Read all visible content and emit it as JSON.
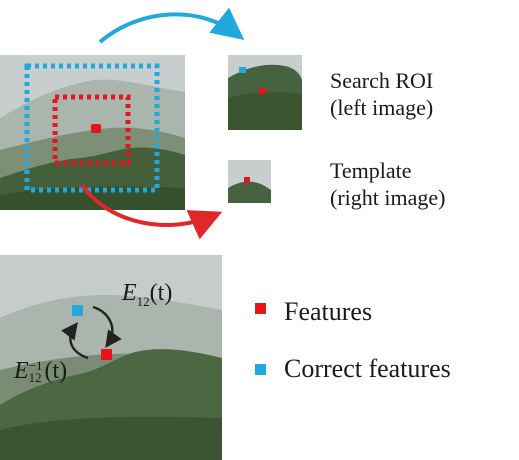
{
  "colors": {
    "feature": "#e8141c",
    "correct_feature": "#21a8df",
    "arrow_blue": "#21a8df",
    "arrow_red": "#e0282a",
    "arrow_black": "#222222",
    "sky": "#c9cfcf",
    "hill_far": "#a9b6ad",
    "hill_mid": "#738a6f",
    "forest": "#3f5a33"
  },
  "labels": {
    "search_roi_line1": "Search ROI",
    "search_roi_line2": "(left image)",
    "template_line1": "Template",
    "template_line2": "(right image)"
  },
  "legend": {
    "features": "Features",
    "correct_features": "Correct features"
  },
  "equations": {
    "forward": {
      "symbol": "E",
      "sub": "12",
      "arg": "(t)"
    },
    "inverse": {
      "symbol": "E",
      "sub": "12",
      "sup": "−1",
      "arg": "(t)"
    }
  }
}
